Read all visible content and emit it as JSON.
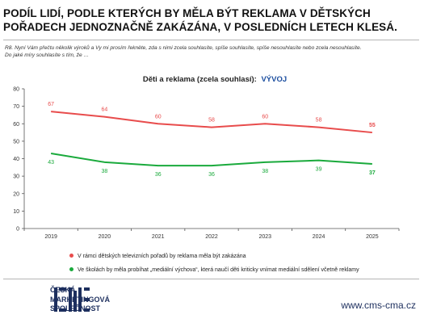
{
  "headline": "PODÍL LIDÍ, PODLE KTERÝCH BY MĚLA BÝT REKLAMA V DĚTSKÝCH POŘADECH JEDNOZNAČNĚ ZAKÁZÁNA, V POSLEDNÍCH LETECH KLESÁ.",
  "question": {
    "line1": "R8. Nyní Vám přečtu několik výroků a Vy mi prosím řekněte, zda s nimi zcela souhlasíte, spíše souhlasíte, spíše nesouhlasíte nebo zcela nesouhlasíte.",
    "line2": "Do jaké míry souhlasíte s tím, že …"
  },
  "chart_data": {
    "type": "line",
    "title": "Děti a reklama (zcela souhlasí):",
    "title_accent": "VÝVOJ",
    "x": [
      "2019",
      "2020",
      "2021",
      "2022",
      "2023",
      "2024",
      "2025"
    ],
    "ylim": [
      0,
      80
    ],
    "yticks": [
      0,
      10,
      20,
      30,
      40,
      50,
      60,
      70,
      80
    ],
    "grid": false,
    "legend_position": "bottom",
    "series": [
      {
        "name": "V rámci dětských televizních pořadů by reklama měla být zakázána",
        "color": "#e84c4c",
        "values": [
          67,
          64,
          60,
          58,
          60,
          58,
          55
        ]
      },
      {
        "name": "Ve školách by měla probíhat „mediální výchova“, která naučí děti kriticky vnímat mediální sdělení včetně reklamy",
        "color": "#1aaa3c",
        "values": [
          43,
          38,
          36,
          36,
          38,
          39,
          37
        ]
      }
    ]
  },
  "colors": {
    "title_accent": "#1d4fa0",
    "brand": "#1d2f5e",
    "axis": "#555555"
  },
  "footer": {
    "logo_lines": [
      "ČESKÁ",
      "MARKETINGOVÁ",
      "SPOLEČNOST"
    ],
    "website": "www.cms-cma.cz"
  }
}
